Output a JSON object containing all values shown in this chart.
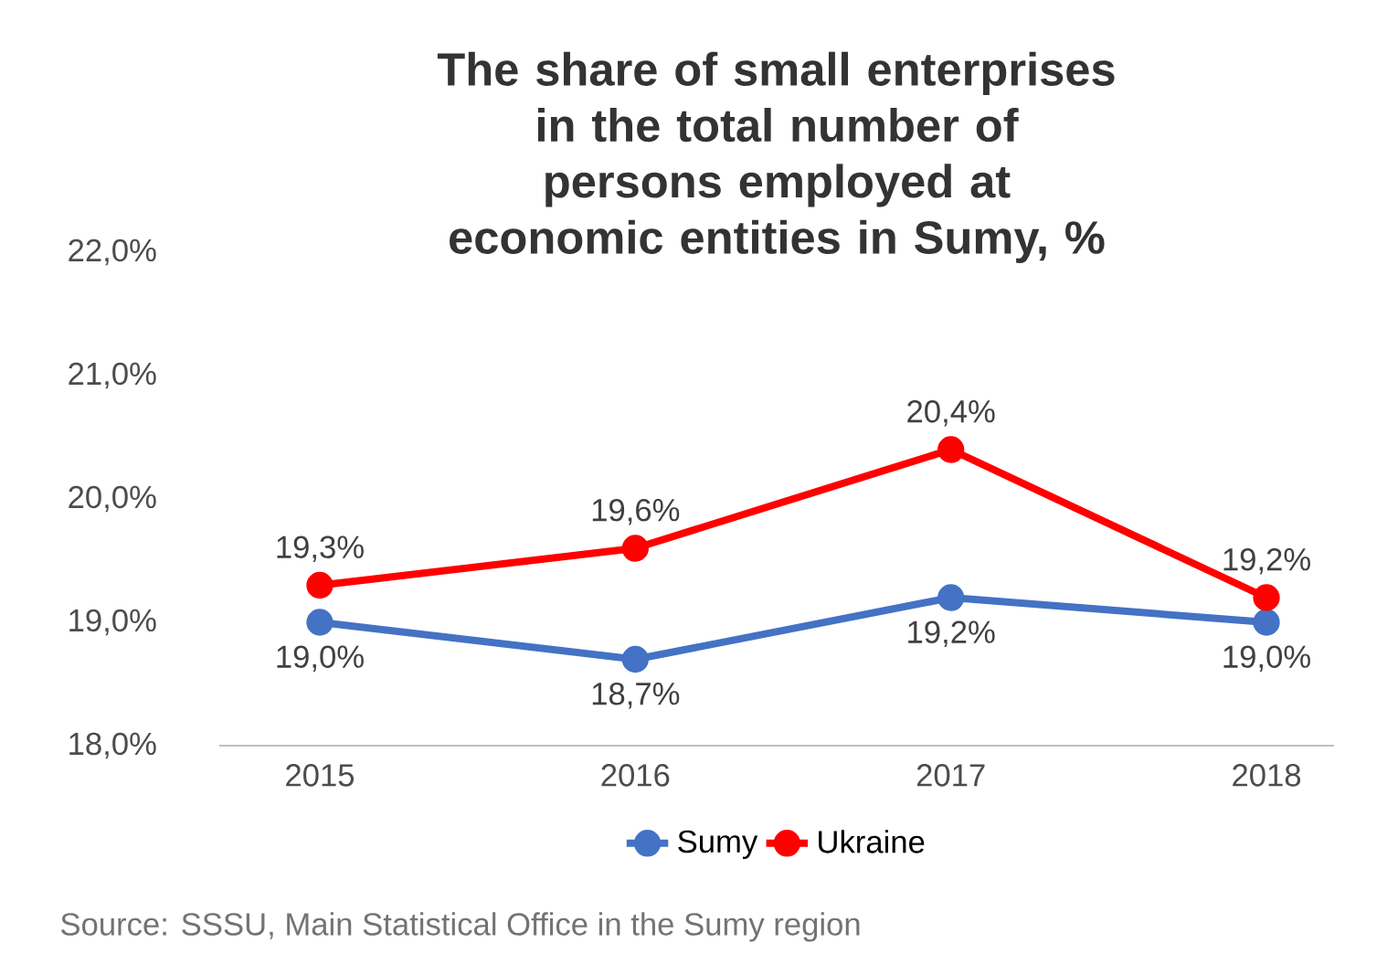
{
  "chart_data": {
    "type": "line",
    "title": "The share of small enterprises in the total number of persons employed at economic entities in Sumy, %",
    "categories": [
      "2015",
      "2016",
      "2017",
      "2018"
    ],
    "series": [
      {
        "name": "Sumy",
        "color": "#4472c4",
        "values": [
          19.0,
          18.7,
          19.2,
          19.0
        ],
        "value_labels": [
          "19,0%",
          "18,7%",
          "19,2%",
          "19,0%"
        ]
      },
      {
        "name": "Ukraine",
        "color": "#ff0000",
        "values": [
          19.3,
          19.6,
          20.4,
          19.2
        ],
        "value_labels": [
          "19,3%",
          "19,6%",
          "20,4%",
          "19,2%"
        ]
      }
    ],
    "ylim": [
      18,
      22
    ],
    "yticks": [
      {
        "value": 18,
        "label": "18,0%"
      },
      {
        "value": 19,
        "label": "19,0%"
      },
      {
        "value": 20,
        "label": "20,0%"
      },
      {
        "value": 21,
        "label": "21,0%"
      },
      {
        "value": 22,
        "label": "22,0%"
      }
    ],
    "legend": "bottom",
    "marker": "circle",
    "grid": false,
    "annotations": [
      "Source: SSSU, Main Statistical Office in the Sumy region"
    ]
  }
}
